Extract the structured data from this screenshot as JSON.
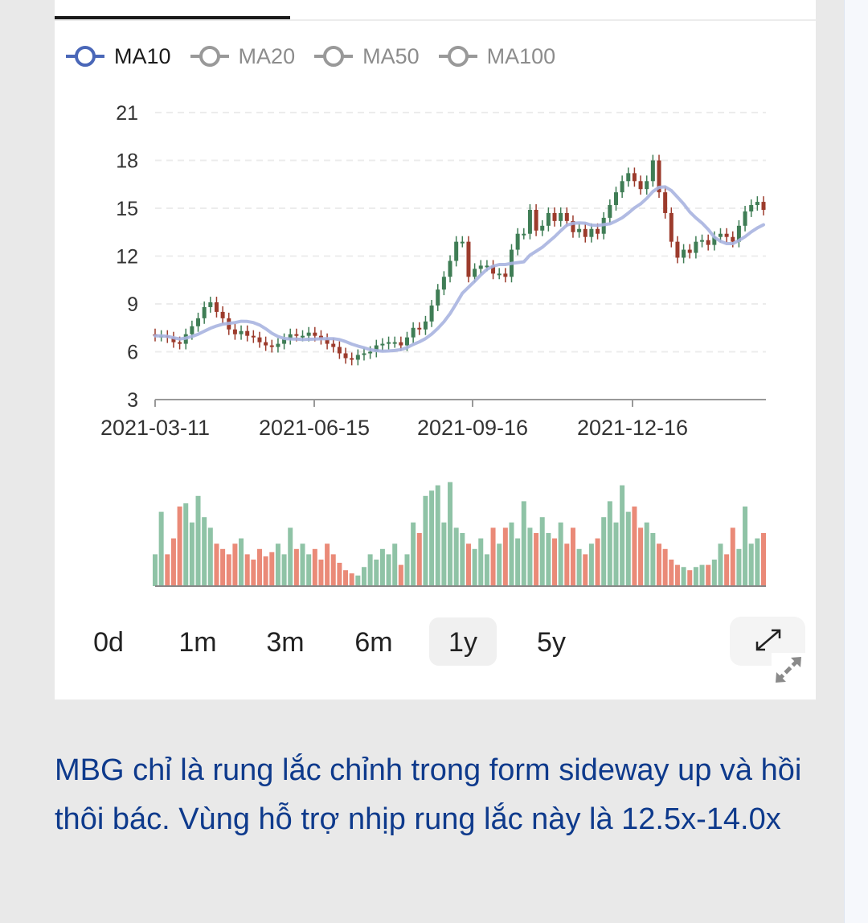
{
  "legend": [
    {
      "label": "MA10",
      "active": true,
      "color": "#4a67b8"
    },
    {
      "label": "MA20",
      "active": false,
      "color": "#999999"
    },
    {
      "label": "MA50",
      "active": false,
      "color": "#999999"
    },
    {
      "label": "MA100",
      "active": false,
      "color": "#999999"
    }
  ],
  "ranges": [
    {
      "label": "0d",
      "selected": false
    },
    {
      "label": "1m",
      "selected": false
    },
    {
      "label": "3m",
      "selected": false
    },
    {
      "label": "6m",
      "selected": false
    },
    {
      "label": "1y",
      "selected": true
    },
    {
      "label": "5y",
      "selected": false
    }
  ],
  "expand_icon": "expand-diagonal-arrows-icon",
  "post_text": "MBG chỉ là rung lắc chỉnh trong form sideway up và hồi thôi bác. Vùng hỗ trợ nhịp rung lắc này là 12.5x-14.0x",
  "colors": {
    "up": "#3f7d55",
    "down": "#9c3b2c",
    "vol_up": "#8fc3a6",
    "vol_down": "#ea8a78",
    "ma10": "#a9b4e0",
    "text_blue": "#0e3a8c"
  },
  "chart_data": {
    "type": "candlestick",
    "ylim": [
      3,
      21
    ],
    "y_ticks": [
      "21",
      "18",
      "15",
      "12",
      "9",
      "6",
      "3"
    ],
    "x_ticks": [
      "2021-03-11",
      "2021-06-15",
      "2021-09-16",
      "2021-12-16"
    ],
    "grid": "horizontal dashed",
    "close": [
      7.0,
      7.0,
      6.9,
      6.6,
      6.5,
      7.1,
      7.6,
      8.1,
      8.8,
      9.1,
      8.5,
      8.1,
      7.4,
      7.1,
      7.3,
      7.0,
      6.9,
      6.6,
      6.4,
      6.3,
      6.5,
      6.8,
      7.1,
      7.0,
      7.0,
      7.2,
      7.0,
      6.8,
      6.5,
      6.3,
      5.9,
      5.6,
      5.5,
      5.8,
      5.9,
      6.0,
      6.4,
      6.5,
      6.6,
      6.6,
      6.4,
      6.9,
      7.5,
      7.4,
      7.9,
      8.9,
      9.9,
      10.7,
      11.7,
      12.9,
      12.9,
      10.7,
      11.2,
      11.4,
      11.4,
      10.9,
      10.9,
      10.7,
      12.4,
      13.4,
      13.4,
      14.9,
      13.6,
      13.9,
      14.7,
      14.2,
      14.7,
      14.2,
      13.5,
      13.7,
      13.2,
      13.7,
      13.4,
      14.4,
      15.2,
      16.0,
      16.7,
      17.2,
      16.7,
      16.2,
      16.7,
      18.0,
      16.0,
      14.7,
      12.9,
      11.9,
      12.4,
      12.2,
      12.9,
      13.0,
      12.7,
      13.2,
      13.4,
      13.2,
      12.9,
      13.9,
      14.8,
      15.2,
      15.4,
      14.9
    ],
    "volume_relative": [
      30,
      70,
      30,
      45,
      75,
      78,
      60,
      85,
      65,
      55,
      40,
      35,
      30,
      40,
      45,
      30,
      25,
      35,
      28,
      32,
      40,
      30,
      55,
      35,
      40,
      30,
      35,
      25,
      40,
      30,
      22,
      15,
      12,
      10,
      18,
      30,
      25,
      35,
      30,
      40,
      20,
      30,
      60,
      50,
      85,
      90,
      95,
      60,
      98,
      55,
      50,
      40,
      35,
      45,
      30,
      55,
      40,
      55,
      60,
      45,
      80,
      55,
      50,
      65,
      50,
      45,
      60,
      40,
      55,
      35,
      30,
      40,
      45,
      65,
      80,
      60,
      95,
      70,
      75,
      55,
      60,
      50,
      40,
      35,
      25,
      20,
      18,
      15,
      18,
      20,
      20,
      25,
      40,
      30,
      55,
      35,
      75,
      40,
      45,
      50
    ],
    "overlay": "MA10"
  }
}
